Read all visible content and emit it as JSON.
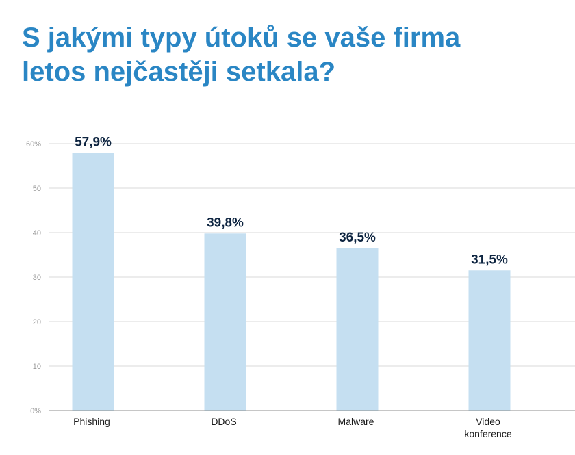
{
  "title_lines": [
    "S jakými typy útoků se vaše firma",
    "letos nejčastěji setkala?"
  ],
  "colors": {
    "title": "#2a86c4",
    "bar": "#c5dff1",
    "grid": "#d9d9d9",
    "axis": "#8c8c8c",
    "value_label": "#0d2440"
  },
  "chart_data": {
    "type": "bar",
    "categories": [
      [
        "Phishing"
      ],
      [
        "DDoS"
      ],
      [
        "Malware"
      ],
      [
        "Video",
        "konference"
      ]
    ],
    "values": [
      57.9,
      39.8,
      36.5,
      31.5
    ],
    "value_labels": [
      "57,9%",
      "39,8%",
      "36,5%",
      "31,5%"
    ],
    "y_ticks": [
      0,
      10,
      20,
      30,
      40,
      50,
      60
    ],
    "y_tick_labels": [
      "0%",
      "10",
      "20",
      "30",
      "40",
      "50",
      "60%"
    ],
    "ylim": [
      0,
      60
    ],
    "grid": true
  }
}
